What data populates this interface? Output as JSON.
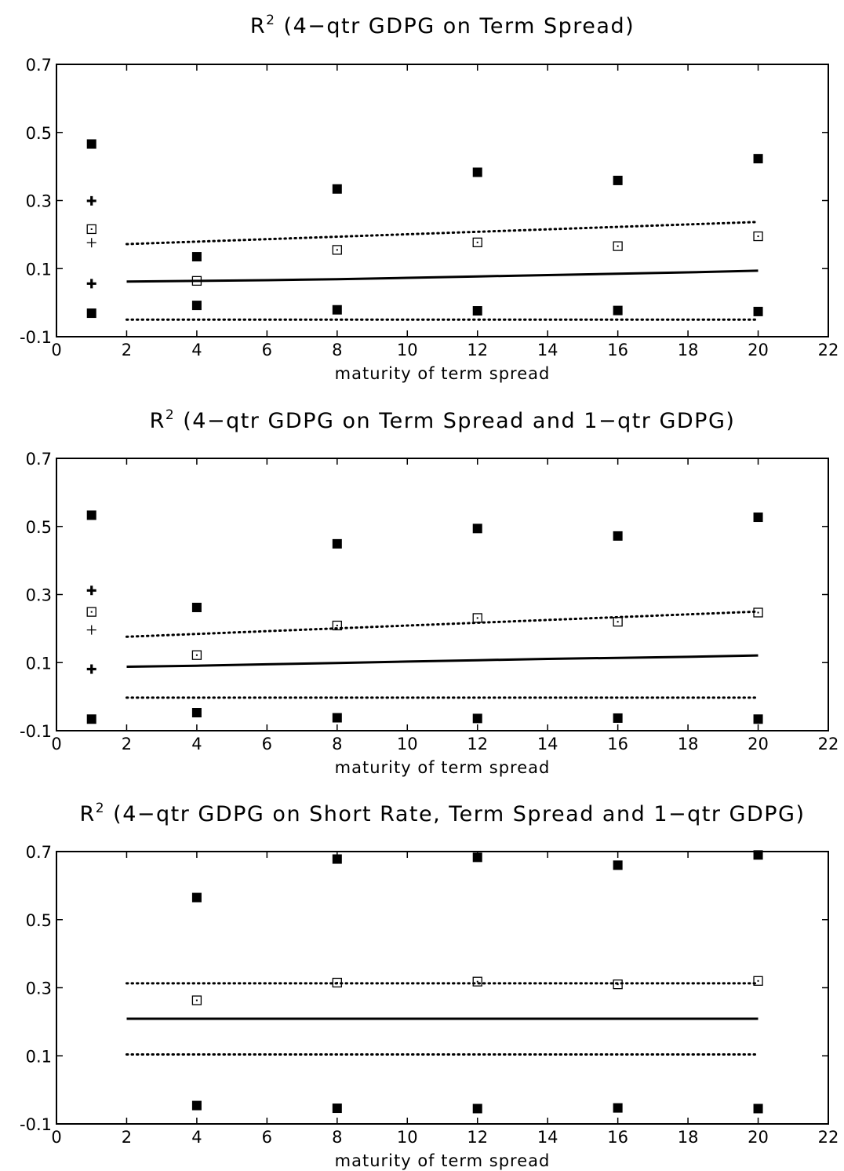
{
  "chart_data": [
    {
      "type": "scatter",
      "title_main": "R",
      "title_sup": "2",
      "title_rest": " (4−qtr GDPG on Term Spread)",
      "xlabel": "maturity of term spread",
      "ylabel": "",
      "xlim": [
        0,
        22
      ],
      "ylim": [
        -0.1,
        0.7
      ],
      "xticks": [
        "0",
        "2",
        "4",
        "6",
        "8",
        "10",
        "12",
        "14",
        "16",
        "18",
        "20",
        "22"
      ],
      "yticks": [
        "-0.1",
        "0.1",
        "0.3",
        "0.5",
        "0.7"
      ],
      "series": [
        {
          "marker": "filled-square",
          "x": [
            1,
            4,
            8,
            12,
            16,
            20
          ],
          "y": [
            0.466,
            0.135,
            0.334,
            0.383,
            0.359,
            0.423
          ]
        },
        {
          "marker": "filled-square",
          "x": [
            1,
            4,
            8,
            12,
            16,
            20
          ],
          "y": [
            -0.031,
            -0.008,
            -0.021,
            -0.024,
            -0.023,
            -0.026
          ]
        },
        {
          "marker": "open-square",
          "x": [
            1,
            4,
            8,
            12,
            16,
            20
          ],
          "y": [
            0.216,
            0.064,
            0.155,
            0.177,
            0.166,
            0.195
          ]
        },
        {
          "marker": "bold-plus",
          "x": [
            1,
            1
          ],
          "y": [
            0.299,
            0.056
          ]
        },
        {
          "marker": "thin-plus",
          "x": [
            1
          ],
          "y": [
            0.176
          ]
        },
        {
          "marker": "solid-line",
          "x": [
            2,
            4,
            6,
            8,
            10,
            12,
            14,
            16,
            18,
            20
          ],
          "y": [
            0.062,
            0.064,
            0.066,
            0.069,
            0.073,
            0.077,
            0.081,
            0.085,
            0.089,
            0.094
          ]
        },
        {
          "marker": "dotted-line",
          "x": [
            2,
            20
          ],
          "y": [
            0.172,
            0.237
          ]
        },
        {
          "marker": "dotted-line",
          "x": [
            2,
            20
          ],
          "y": [
            -0.05,
            -0.05
          ]
        }
      ]
    },
    {
      "type": "scatter",
      "title_main": "R",
      "title_sup": "2",
      "title_rest": " (4−qtr GDPG on Term Spread and 1−qtr GDPG)",
      "xlabel": "maturity of term spread",
      "ylabel": "",
      "xlim": [
        0,
        22
      ],
      "ylim": [
        -0.1,
        0.7
      ],
      "xticks": [
        "0",
        "2",
        "4",
        "6",
        "8",
        "10",
        "12",
        "14",
        "16",
        "18",
        "20",
        "22"
      ],
      "yticks": [
        "-0.1",
        "0.1",
        "0.3",
        "0.5",
        "0.7"
      ],
      "series": [
        {
          "marker": "filled-square",
          "x": [
            1,
            4,
            8,
            12,
            16,
            20
          ],
          "y": [
            0.533,
            0.262,
            0.449,
            0.494,
            0.472,
            0.527
          ]
        },
        {
          "marker": "filled-square",
          "x": [
            1,
            4,
            8,
            12,
            16,
            20
          ],
          "y": [
            -0.066,
            -0.047,
            -0.062,
            -0.064,
            -0.063,
            -0.066
          ]
        },
        {
          "marker": "open-square",
          "x": [
            1,
            4,
            8,
            12,
            16,
            20
          ],
          "y": [
            0.249,
            0.122,
            0.209,
            0.231,
            0.22,
            0.247
          ]
        },
        {
          "marker": "bold-plus",
          "x": [
            1,
            1
          ],
          "y": [
            0.312,
            0.081
          ]
        },
        {
          "marker": "thin-plus",
          "x": [
            1
          ],
          "y": [
            0.196
          ]
        },
        {
          "marker": "solid-line",
          "x": [
            2,
            4,
            6,
            8,
            10,
            12,
            14,
            16,
            18,
            20
          ],
          "y": [
            0.088,
            0.091,
            0.095,
            0.099,
            0.103,
            0.107,
            0.111,
            0.114,
            0.117,
            0.121
          ]
        },
        {
          "marker": "dotted-line",
          "x": [
            2,
            20
          ],
          "y": [
            0.176,
            0.25
          ]
        },
        {
          "marker": "dotted-line",
          "x": [
            2,
            20
          ],
          "y": [
            -0.003,
            -0.003
          ]
        }
      ]
    },
    {
      "type": "scatter",
      "title_main": "R",
      "title_sup": "2",
      "title_rest": " (4−qtr GDPG on Short Rate, Term Spread and 1−qtr GDPG)",
      "xlabel": "maturity of term spread",
      "ylabel": "",
      "xlim": [
        0,
        22
      ],
      "ylim": [
        -0.1,
        0.7
      ],
      "xticks": [
        "0",
        "2",
        "4",
        "6",
        "8",
        "10",
        "12",
        "14",
        "16",
        "18",
        "20",
        "22"
      ],
      "yticks": [
        "-0.1",
        "0.1",
        "0.3",
        "0.5",
        "0.7"
      ],
      "series": [
        {
          "marker": "filled-square",
          "x": [
            4,
            8,
            12,
            16,
            20
          ],
          "y": [
            0.565,
            0.678,
            0.683,
            0.66,
            0.69
          ]
        },
        {
          "marker": "filled-square",
          "x": [
            4,
            8,
            12,
            16,
            20
          ],
          "y": [
            -0.046,
            -0.054,
            -0.055,
            -0.053,
            -0.055
          ]
        },
        {
          "marker": "open-square",
          "x": [
            4,
            8,
            12,
            16,
            20
          ],
          "y": [
            0.263,
            0.315,
            0.318,
            0.31,
            0.32
          ]
        },
        {
          "marker": "solid-line",
          "x": [
            2,
            20
          ],
          "y": [
            0.209,
            0.209
          ]
        },
        {
          "marker": "dotted-line",
          "x": [
            2,
            20
          ],
          "y": [
            0.313,
            0.313
          ]
        },
        {
          "marker": "dotted-line",
          "x": [
            2,
            20
          ],
          "y": [
            0.104,
            0.104
          ]
        }
      ]
    }
  ]
}
